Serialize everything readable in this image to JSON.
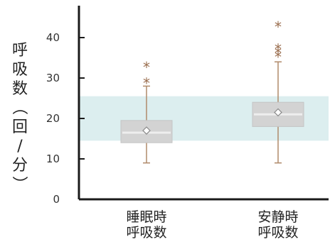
{
  "chart_data": {
    "type": "box",
    "title": "",
    "xlabel": "",
    "ylabel": "呼吸数（回/分）",
    "ylim": [
      0,
      48
    ],
    "yticks": [
      0,
      10,
      20,
      30,
      40
    ],
    "grid": false,
    "reference_band": {
      "from": 14.5,
      "to": 25.5,
      "color": "#dceeef"
    },
    "categories": [
      {
        "label_line1": "睡眠時",
        "label_line2": "呼吸数"
      },
      {
        "label_line1": "安静時",
        "label_line2": "呼吸数"
      }
    ],
    "boxes": [
      {
        "whisker_low": 9,
        "q1": 14,
        "median": 16.5,
        "q3": 19.5,
        "whisker_high": 28,
        "mean": 17,
        "outliers": [
          29,
          33
        ]
      },
      {
        "whisker_low": 9,
        "q1": 18,
        "median": 21,
        "q3": 24,
        "whisker_high": 34,
        "mean": 21.5,
        "outliers": [
          35.5,
          36.5,
          37.5,
          43
        ]
      }
    ],
    "colors": {
      "axis": "#1a1a1a",
      "box_fill": "#d3d3d3",
      "box_stroke": "#c4c4c4",
      "median": "#eeeeee",
      "whisker": "#b08a6a",
      "outlier": "#9a6d4e",
      "mean_marker": "#8a8a8a"
    }
  }
}
